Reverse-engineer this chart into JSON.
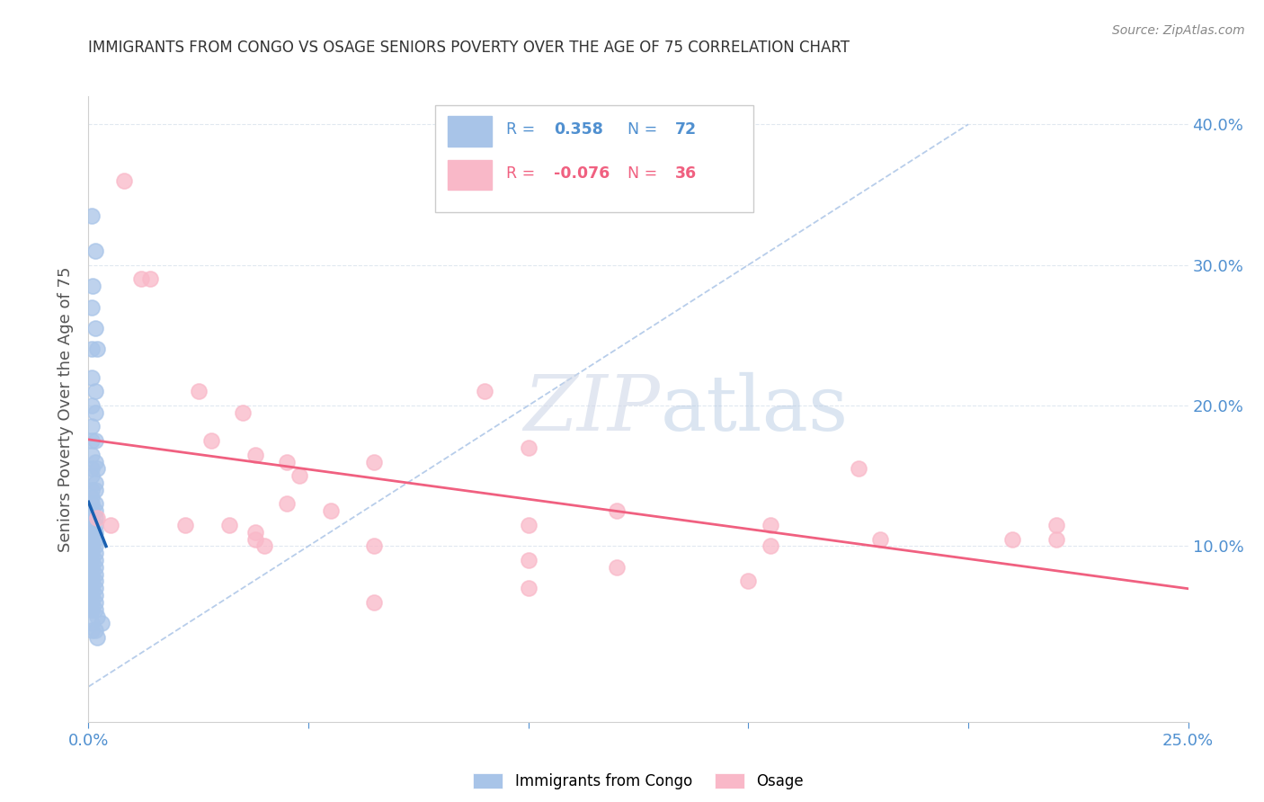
{
  "title": "IMMIGRANTS FROM CONGO VS OSAGE SENIORS POVERTY OVER THE AGE OF 75 CORRELATION CHART",
  "source": "Source: ZipAtlas.com",
  "ylabel": "Seniors Poverty Over the Age of 75",
  "xlim": [
    0.0,
    0.25
  ],
  "ylim": [
    -0.025,
    0.42
  ],
  "watermark_zip": "ZIP",
  "watermark_atlas": "atlas",
  "congo_color": "#a8c4e8",
  "congo_edge_color": "#a8c4e8",
  "osage_color": "#f9b8c8",
  "osage_edge_color": "#f9b8c8",
  "congo_line_color": "#1a5fb0",
  "osage_line_color": "#f06080",
  "dashed_line_color": "#b0c8e8",
  "legend_blue": "#5090d0",
  "legend_pink": "#f06080",
  "background_color": "#ffffff",
  "grid_color": "#e0e8f0",
  "congo_points": [
    [
      0.0008,
      0.335
    ],
    [
      0.0015,
      0.31
    ],
    [
      0.001,
      0.285
    ],
    [
      0.0008,
      0.27
    ],
    [
      0.0015,
      0.255
    ],
    [
      0.0008,
      0.24
    ],
    [
      0.002,
      0.24
    ],
    [
      0.0008,
      0.22
    ],
    [
      0.0015,
      0.21
    ],
    [
      0.0008,
      0.2
    ],
    [
      0.0015,
      0.195
    ],
    [
      0.0008,
      0.185
    ],
    [
      0.0008,
      0.175
    ],
    [
      0.0015,
      0.175
    ],
    [
      0.0008,
      0.165
    ],
    [
      0.0015,
      0.16
    ],
    [
      0.0008,
      0.155
    ],
    [
      0.002,
      0.155
    ],
    [
      0.0008,
      0.15
    ],
    [
      0.0015,
      0.145
    ],
    [
      0.0008,
      0.14
    ],
    [
      0.0015,
      0.14
    ],
    [
      0.0008,
      0.135
    ],
    [
      0.0008,
      0.13
    ],
    [
      0.0015,
      0.13
    ],
    [
      0.0008,
      0.125
    ],
    [
      0.0015,
      0.125
    ],
    [
      0.0008,
      0.12
    ],
    [
      0.0008,
      0.12
    ],
    [
      0.0015,
      0.12
    ],
    [
      0.0008,
      0.115
    ],
    [
      0.0015,
      0.115
    ],
    [
      0.0008,
      0.11
    ],
    [
      0.0008,
      0.11
    ],
    [
      0.0015,
      0.11
    ],
    [
      0.0008,
      0.105
    ],
    [
      0.0015,
      0.105
    ],
    [
      0.0008,
      0.1
    ],
    [
      0.0008,
      0.1
    ],
    [
      0.0015,
      0.1
    ],
    [
      0.0008,
      0.095
    ],
    [
      0.0015,
      0.095
    ],
    [
      0.0008,
      0.09
    ],
    [
      0.0008,
      0.09
    ],
    [
      0.0015,
      0.09
    ],
    [
      0.0008,
      0.085
    ],
    [
      0.0008,
      0.085
    ],
    [
      0.0015,
      0.085
    ],
    [
      0.0008,
      0.08
    ],
    [
      0.0015,
      0.08
    ],
    [
      0.0008,
      0.075
    ],
    [
      0.0008,
      0.075
    ],
    [
      0.0015,
      0.075
    ],
    [
      0.0008,
      0.07
    ],
    [
      0.0008,
      0.07
    ],
    [
      0.0015,
      0.07
    ],
    [
      0.0008,
      0.065
    ],
    [
      0.0008,
      0.065
    ],
    [
      0.0015,
      0.065
    ],
    [
      0.0008,
      0.06
    ],
    [
      0.0008,
      0.06
    ],
    [
      0.0015,
      0.06
    ],
    [
      0.0008,
      0.055
    ],
    [
      0.0008,
      0.055
    ],
    [
      0.0015,
      0.055
    ],
    [
      0.002,
      0.05
    ],
    [
      0.0008,
      0.045
    ],
    [
      0.003,
      0.045
    ],
    [
      0.0008,
      0.04
    ],
    [
      0.0015,
      0.04
    ],
    [
      0.002,
      0.035
    ]
  ],
  "osage_points": [
    [
      0.008,
      0.36
    ],
    [
      0.012,
      0.29
    ],
    [
      0.014,
      0.29
    ],
    [
      0.025,
      0.21
    ],
    [
      0.035,
      0.195
    ],
    [
      0.028,
      0.175
    ],
    [
      0.038,
      0.165
    ],
    [
      0.09,
      0.21
    ],
    [
      0.1,
      0.17
    ],
    [
      0.045,
      0.16
    ],
    [
      0.065,
      0.16
    ],
    [
      0.175,
      0.155
    ],
    [
      0.048,
      0.15
    ],
    [
      0.045,
      0.13
    ],
    [
      0.055,
      0.125
    ],
    [
      0.12,
      0.125
    ],
    [
      0.155,
      0.115
    ],
    [
      0.002,
      0.12
    ],
    [
      0.005,
      0.115
    ],
    [
      0.022,
      0.115
    ],
    [
      0.032,
      0.115
    ],
    [
      0.038,
      0.11
    ],
    [
      0.1,
      0.115
    ],
    [
      0.038,
      0.105
    ],
    [
      0.18,
      0.105
    ],
    [
      0.22,
      0.115
    ],
    [
      0.21,
      0.105
    ],
    [
      0.04,
      0.1
    ],
    [
      0.155,
      0.1
    ],
    [
      0.065,
      0.1
    ],
    [
      0.1,
      0.09
    ],
    [
      0.12,
      0.085
    ],
    [
      0.22,
      0.105
    ],
    [
      0.15,
      0.075
    ],
    [
      0.1,
      0.07
    ],
    [
      0.065,
      0.06
    ]
  ]
}
